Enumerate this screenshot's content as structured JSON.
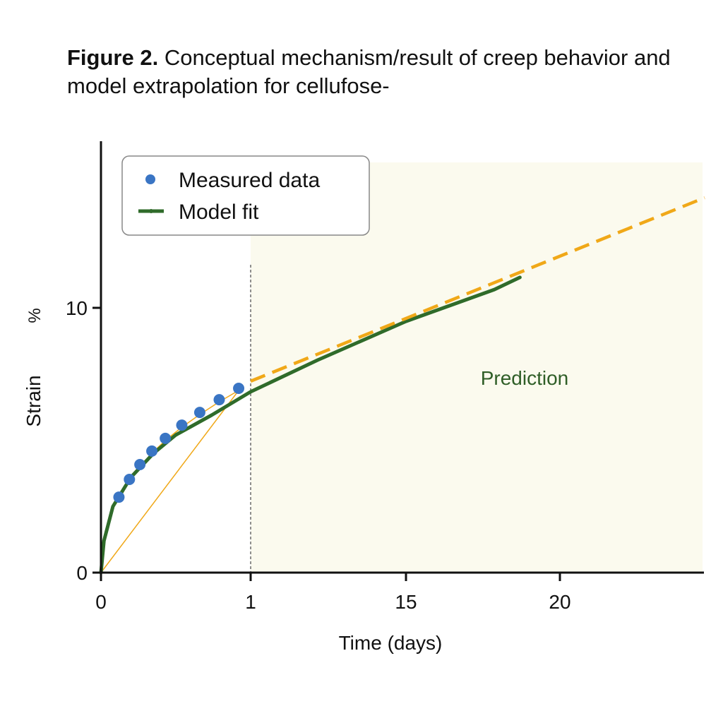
{
  "title_bold": "Figure 2.",
  "title_rest": "Conceptual mechanism/result of creep behavior and model extrapolation for cellufose-",
  "chart_data": {
    "type": "line",
    "xlabel": "Time (days)",
    "ylabel": "Strain",
    "ylabel_unit_glyph": "%",
    "x_ticks": [
      0,
      1,
      15,
      20
    ],
    "x_tick_labels": [
      "0",
      "1",
      "15",
      "20"
    ],
    "y_ticks": [
      0,
      10
    ],
    "y_tick_labels": [
      "0",
      "10"
    ],
    "ylim": [
      0,
      16.3
    ],
    "xlim": [
      0,
      24.7
    ],
    "grid": false,
    "legend_placement": "top-left",
    "annotation": "Prediction",
    "prediction_region_start_x": 1,
    "series": [
      {
        "name": "Measured data",
        "kind": "scatter",
        "color": "#3a75c4",
        "x": [
          0.12,
          0.19,
          0.26,
          0.34,
          0.43,
          0.54,
          0.66,
          0.79,
          0.92
        ],
        "y": [
          2.85,
          3.52,
          4.08,
          4.59,
          5.07,
          5.57,
          6.05,
          6.53,
          6.96
        ]
      },
      {
        "name": "Model fit",
        "kind": "line",
        "color": "#2f6b2a",
        "x": [
          0,
          0.02,
          0.08,
          0.2,
          0.35,
          0.5,
          0.74,
          1,
          7.05,
          15,
          17.87,
          18.7
        ],
        "y": [
          0,
          1.2,
          2.5,
          3.6,
          4.5,
          5.2,
          5.95,
          6.83,
          8.03,
          9.49,
          10.69,
          11.15
        ]
      },
      {
        "kind": "dashed-line",
        "color": "#f0a818",
        "x": [
          1,
          24.7
        ],
        "y": [
          7.23,
          14.16
        ]
      }
    ]
  },
  "colors": {
    "prediction_fill": "#fbfaee",
    "axis": "#111111",
    "annotation": "#2f5e27"
  }
}
